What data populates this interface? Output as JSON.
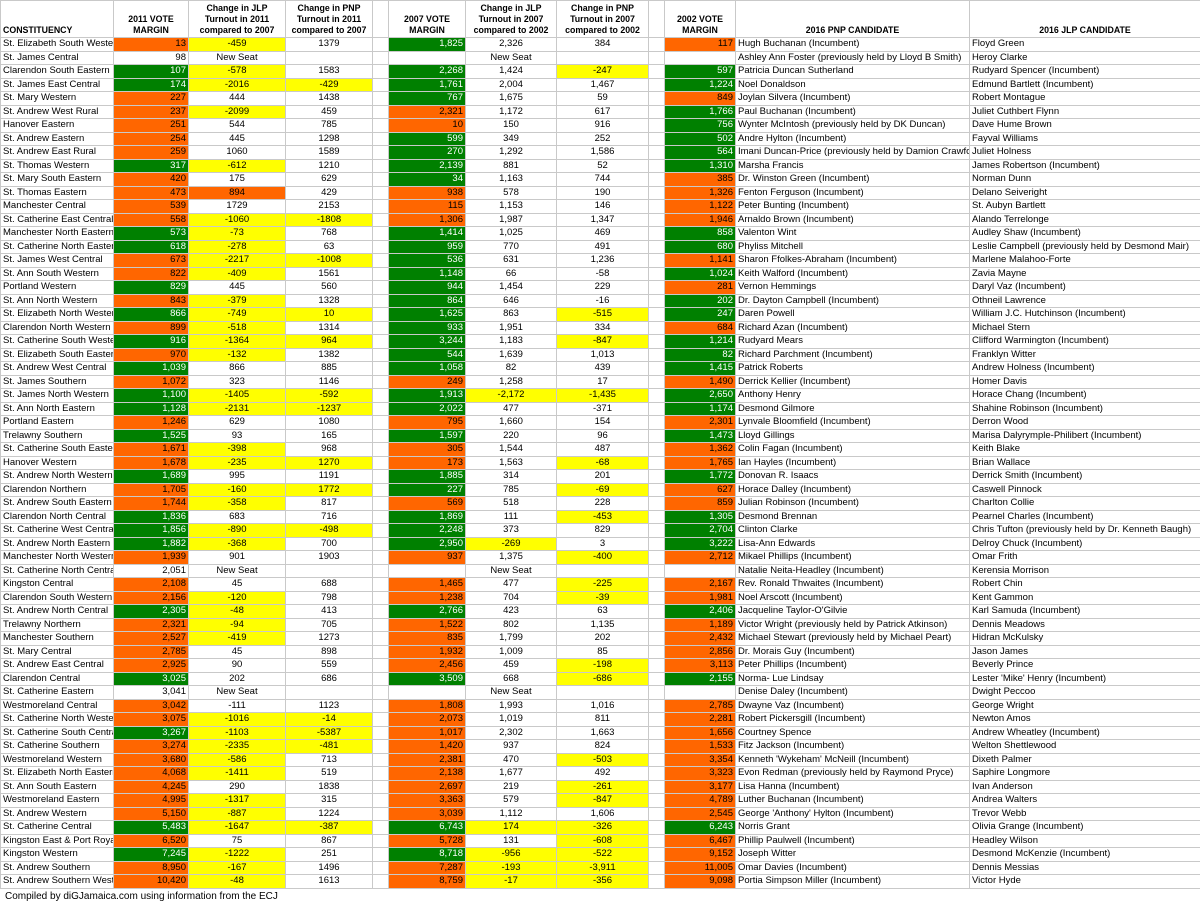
{
  "headers": [
    "CONSTITUENCY",
    "2011 VOTE MARGIN",
    "Change in JLP Turnout in 2011 compared to 2007",
    "Change in PNP Turnout in 2011 compared to 2007",
    "",
    "2007 VOTE MARGIN",
    "Change in JLP Turnout in 2007 compared to 2002",
    "Change in PNP Turnout in 2007 compared to 2002",
    "",
    "2002 VOTE MARGIN",
    "2016 PNP CANDIDATE",
    "2016 JLP CANDIDATE"
  ],
  "rows": [
    [
      "St. Elizabeth South Western",
      "13",
      "-459",
      "1379",
      "1,825",
      "2,326",
      "384",
      "117",
      "Hugh Buchanan (Incumbent)",
      "Floyd Green"
    ],
    [
      "St. James Central",
      "98",
      "New Seat",
      "",
      "",
      "New Seat",
      "",
      "",
      "Ashley Ann Foster (previously held by Lloyd B Smith)",
      "Heroy Clarke"
    ],
    [
      "Clarendon South Eastern",
      "107",
      "-578",
      "1583",
      "2,268",
      "1,424",
      "-247",
      "597",
      "Patricia Duncan Sutherland",
      "Rudyard Spencer (Incumbent)"
    ],
    [
      "St. James East Central",
      "174",
      "-2016",
      "-429",
      "1,761",
      "2,004",
      "1,467",
      "1,224",
      "Noel Donaldson",
      "Edmund Bartlett (Incumbent)"
    ],
    [
      "St. Mary Western",
      "227",
      "444",
      "1438",
      "767",
      "1,675",
      "59",
      "849",
      "Joylan Silvera (Incumbent)",
      "Robert Montague"
    ],
    [
      "St. Andrew West Rural",
      "237",
      "-2099",
      "459",
      "2,321",
      "1,172",
      "617",
      "1,766",
      "Paul Buchanan (Incumbent)",
      "Juliet Cuthbert Flynn"
    ],
    [
      "Hanover Eastern",
      "251",
      "544",
      "785",
      "10",
      "150",
      "916",
      "756",
      "Wynter McIntosh (previously held by DK Duncan)",
      "Dave Hume Brown"
    ],
    [
      "St. Andrew Eastern",
      "254",
      "445",
      "1298",
      "599",
      "349",
      "252",
      "502",
      "Andre Hylton (Incumbent)",
      "Fayval Williams"
    ],
    [
      "St. Andrew East Rural",
      "259",
      "1060",
      "1589",
      "270",
      "1,292",
      "1,586",
      "564",
      "Imani Duncan-Price (previously held by Damion Crawford)",
      "Juliet Holness"
    ],
    [
      "St. Thomas Western",
      "317",
      "-612",
      "1210",
      "2,139",
      "881",
      "52",
      "1,310",
      "Marsha Francis",
      "James Robertson (Incumbent)"
    ],
    [
      "St. Mary South Eastern",
      "420",
      "175",
      "629",
      "34",
      "1,163",
      "744",
      "385",
      "Dr. Winston Green (Incumbent)",
      "Norman Dunn"
    ],
    [
      "St. Thomas Eastern",
      "473",
      "894",
      "429",
      "938",
      "578",
      "190",
      "1,326",
      "Fenton Ferguson (Incumbent)",
      "Delano Seiveright"
    ],
    [
      "Manchester Central",
      "539",
      "1729",
      "2153",
      "115",
      "1,153",
      "146",
      "1,122",
      "Peter Bunting (Incumbent)",
      "St. Aubyn Bartlett"
    ],
    [
      "St. Catherine East Central",
      "558",
      "-1060",
      "-1808",
      "1,306",
      "1,987",
      "1,347",
      "1,946",
      "Arnaldo Brown (Incumbent)",
      "Alando Terrelonge"
    ],
    [
      "Manchester North Eastern",
      "573",
      "-73",
      "768",
      "1,414",
      "1,025",
      "469",
      "858",
      "Valenton Wint",
      "Audley Shaw (Incumbent)"
    ],
    [
      "St. Catherine North Eastern",
      "618",
      "-278",
      "63",
      "959",
      "770",
      "491",
      "680",
      "Phyliss Mitchell",
      "Leslie Campbell (previously held by Desmond Mair)"
    ],
    [
      "St. James West Central",
      "673",
      "-2217",
      "-1008",
      "536",
      "631",
      "1,236",
      "1,141",
      "Sharon Ffolkes-Abraham (Incumbent)",
      "Marlene Malahoo-Forte"
    ],
    [
      "St. Ann South Western",
      "822",
      "-409",
      "1561",
      "1,148",
      "66",
      "-58",
      "1,024",
      "Keith Walford (Incumbent)",
      "Zavia Mayne"
    ],
    [
      "Portland Western",
      "829",
      "445",
      "560",
      "944",
      "1,454",
      "229",
      "281",
      "Vernon Hemmings",
      "Daryl Vaz (Incumbent)"
    ],
    [
      "St. Ann North Western",
      "843",
      "-379",
      "1328",
      "864",
      "646",
      "-16",
      "202",
      "Dr. Dayton Campbell (Incumbent)",
      "Othneil Lawrence"
    ],
    [
      "St. Elizabeth North Western",
      "866",
      "-749",
      "10",
      "1,625",
      "863",
      "-515",
      "247",
      "Daren Powell",
      "William J.C. Hutchinson (Incumbent)"
    ],
    [
      "Clarendon North Western",
      "899",
      "-518",
      "1314",
      "933",
      "1,951",
      "334",
      "684",
      "Richard Azan (Incumbent)",
      "Michael Stern"
    ],
    [
      "St. Catherine South Western",
      "916",
      "-1364",
      "964",
      "3,244",
      "1,183",
      "-847",
      "1,214",
      "Rudyard Mears",
      "Clifford Warmington (Incumbent)"
    ],
    [
      "St. Elizabeth South Eastern",
      "970",
      "-132",
      "1382",
      "544",
      "1,639",
      "1,013",
      "82",
      "Richard Parchment (Incumbent)",
      "Franklyn Witter"
    ],
    [
      "St. Andrew West Central",
      "1,039",
      "866",
      "885",
      "1,058",
      "82",
      "439",
      "1,415",
      "Patrick Roberts",
      "Andrew Holness (Incumbent)"
    ],
    [
      "St. James Southern",
      "1,072",
      "323",
      "1146",
      "249",
      "1,258",
      "17",
      "1,490",
      "Derrick Kellier (Incumbent)",
      "Homer Davis"
    ],
    [
      "St. James North Western",
      "1,100",
      "-1405",
      "-592",
      "1,913",
      "-2,172",
      "-1,435",
      "2,650",
      "Anthony Henry",
      "Horace Chang (Incumbent)"
    ],
    [
      "St. Ann North Eastern",
      "1,128",
      "-2131",
      "-1237",
      "2,022",
      "477",
      "-371",
      "1,174",
      "Desmond Gilmore",
      "Shahine Robinson (Incumbent)"
    ],
    [
      "Portland Eastern",
      "1,246",
      "629",
      "1080",
      "795",
      "1,660",
      "154",
      "2,301",
      "Lynvale Bloomfield (Incumbent)",
      "Derron Wood"
    ],
    [
      "Trelawny Southern",
      "1,525",
      "93",
      "165",
      "1,597",
      "220",
      "96",
      "1,473",
      "Lloyd Gillings",
      "Marisa Dalyrymple-Philibert (Incumbent)"
    ],
    [
      "St. Catherine South Eastern",
      "1,671",
      "-398",
      "968",
      "305",
      "1,544",
      "487",
      "1,362",
      "Colin Fagan (Incumbent)",
      "Keith Blake"
    ],
    [
      "Hanover Western",
      "1,678",
      "-235",
      "1270",
      "173",
      "1,563",
      "-68",
      "1,765",
      "Ian Hayles (Incumbent)",
      "Brian Wallace"
    ],
    [
      "St. Andrew North Western",
      "1,689",
      "995",
      "1191",
      "1,885",
      "314",
      "201",
      "1,772",
      "Donovan R. Isaacs",
      "Derrick Smith (Incumbent)"
    ],
    [
      "Clarendon Northern",
      "1,705",
      "-160",
      "1772",
      "227",
      "785",
      "-69",
      "627",
      "Horace Dalley (Incumbent)",
      "Caswell Pinnock"
    ],
    [
      "St. Andrew South Eastern",
      "1,744",
      "-358",
      "817",
      "569",
      "518",
      "228",
      "859",
      "Julian Robinson (Incumbent)",
      "Charlton Collie"
    ],
    [
      "Clarendon North Central",
      "1,836",
      "683",
      "716",
      "1,869",
      "111",
      "-453",
      "1,305",
      "Desmond Brennan",
      "Pearnel Charles (Incumbent)"
    ],
    [
      "St. Catherine West Central",
      "1,856",
      "-890",
      "-498",
      "2,248",
      "373",
      "829",
      "2,704",
      "Clinton Clarke",
      "Chris Tufton (previously held by Dr. Kenneth Baugh)"
    ],
    [
      "St. Andrew North Eastern",
      "1,882",
      "-368",
      "700",
      "2,950",
      "-269",
      "3",
      "3,222",
      "Lisa-Ann Edwards",
      "Delroy Chuck (Incumbent)"
    ],
    [
      "Manchester North Western",
      "1,939",
      "901",
      "1903",
      "937",
      "1,375",
      "-400",
      "2,712",
      "Mikael Phillips (Incumbent)",
      "Omar Frith"
    ],
    [
      "St. Catherine North Central",
      "2,051",
      "New Seat",
      "",
      "",
      "New Seat",
      "",
      "",
      "Natalie Neita-Headley (Incumbent)",
      "Kerensia Morrison"
    ],
    [
      "Kingston Central",
      "2,108",
      "45",
      "688",
      "1,465",
      "477",
      "-225",
      "2,167",
      "Rev. Ronald Thwaites (Incumbent)",
      "Robert Chin"
    ],
    [
      "Clarendon South Western",
      "2,156",
      "-120",
      "798",
      "1,238",
      "704",
      "-39",
      "1,981",
      "Noel Arscott (Incumbent)",
      "Kent Gammon"
    ],
    [
      "St. Andrew North Central",
      "2,305",
      "-48",
      "413",
      "2,766",
      "423",
      "63",
      "2,406",
      "Jacqueline Taylor-O'Gilvie",
      "Karl Samuda (Incumbent)"
    ],
    [
      "Trelawny Northern",
      "2,321",
      "-94",
      "705",
      "1,522",
      "802",
      "1,135",
      "1,189",
      "Victor Wright (previously held by Patrick Atkinson)",
      "Dennis Meadows"
    ],
    [
      "Manchester Southern",
      "2,527",
      "-419",
      "1273",
      "835",
      "1,799",
      "202",
      "2,432",
      "Michael Stewart  (previously held by Michael Peart)",
      "Hidran McKulsky"
    ],
    [
      "St. Mary Central",
      "2,785",
      "45",
      "898",
      "1,932",
      "1,009",
      "85",
      "2,856",
      "Dr. Morais Guy (Incumbent)",
      "Jason James"
    ],
    [
      "St. Andrew East Central",
      "2,925",
      "90",
      "559",
      "2,456",
      "459",
      "-198",
      "3,113",
      "Peter Phillips (Incumbent)",
      "Beverly Prince"
    ],
    [
      "Clarendon Central",
      "3,025",
      "202",
      "686",
      "3,509",
      "668",
      "-686",
      "2,155",
      "Norma- Lue Lindsay",
      "Lester 'Mike' Henry (Incumbent)"
    ],
    [
      "St. Catherine Eastern",
      "3,041",
      "New Seat",
      "",
      "",
      "New Seat",
      "",
      "",
      "Denise Daley (Incumbent)",
      "Dwight Peccoo"
    ],
    [
      "Westmoreland Central",
      "3,042",
      "-111",
      "1123",
      "1,808",
      "1,993",
      "1,016",
      "2,785",
      "Dwayne Vaz (Incumbent)",
      "George Wright"
    ],
    [
      "St. Catherine North Western",
      "3,075",
      "-1016",
      "-14",
      "2,073",
      "1,019",
      "811",
      "2,281",
      "Robert Pickersgill (Incumbent)",
      "Newton Amos"
    ],
    [
      "St. Catherine South Central",
      "3,267",
      "-1103",
      "-5387",
      "1,017",
      "2,302",
      "1,663",
      "1,656",
      "Courtney Spence",
      "Andrew Wheatley (Incumbent)"
    ],
    [
      "St. Catherine Southern",
      "3,274",
      "-2335",
      "-481",
      "1,420",
      "937",
      "824",
      "1,533",
      "Fitz Jackson (Incumbent)",
      "Welton Shettlewood"
    ],
    [
      "Westmoreland Western",
      "3,680",
      "-586",
      "713",
      "2,381",
      "470",
      "-503",
      "3,354",
      "Kenneth 'Wykeham' McNeill (Incumbent)",
      "Dixeth Palmer"
    ],
    [
      "St. Elizabeth North Eastern",
      "4,068",
      "-1411",
      "519",
      "2,138",
      "1,677",
      "492",
      "3,323",
      "Evon Redman (previously held by Raymond Pryce)",
      "Saphire Longmore"
    ],
    [
      "St. Ann South Eastern",
      "4,245",
      "290",
      "1838",
      "2,697",
      "219",
      "-261",
      "3,177",
      "Lisa Hanna (Incumbent)",
      "Ivan Anderson"
    ],
    [
      "Westmoreland Eastern",
      "4,995",
      "-1317",
      "315",
      "3,363",
      "579",
      "-847",
      "4,789",
      "Luther Buchanan (Incumbent)",
      "Andrea Walters"
    ],
    [
      "St. Andrew Western",
      "5,150",
      "-887",
      "1224",
      "3,039",
      "1,112",
      "1,606",
      "2,545",
      "George 'Anthony' Hylton (Incumbent)",
      "Trevor Webb"
    ],
    [
      "St. Catherine Central",
      "5,483",
      "-1647",
      "-387",
      "6,743",
      "174",
      "-326",
      "6,243",
      "Norris Grant",
      "Olivia Grange (Incumbent)"
    ],
    [
      "Kingston East & Port Royal",
      "6,520",
      "75",
      "867",
      "5,728",
      "131",
      "-608",
      "6,467",
      "Phillip Paulwell (Incumbent)",
      "Headley Wilson"
    ],
    [
      "Kingston Western",
      "7,245",
      "-1222",
      "251",
      "8,718",
      "-956",
      "-522",
      "9,152",
      "Joseph Witter",
      "Desmond McKenzie (Incumbent)"
    ],
    [
      "St. Andrew Southern",
      "8,950",
      "-167",
      "1496",
      "7,287",
      "-193",
      "-3,911",
      "11,005",
      "Omar Davies (Incumbent)",
      "Dennis Messias"
    ],
    [
      "St. Andrew Southern Western",
      "10,420",
      "-48",
      "1613",
      "8,759",
      "-17",
      "-356",
      "9,098",
      "Portia Simpson Miller (Incumbent)",
      "Victor Hyde"
    ]
  ],
  "colors": [
    "oyn",
    "nnn",
    "gyn",
    "gyy",
    "onn",
    "oyn",
    "onn",
    "onn",
    "onn",
    "gyn",
    "onn",
    "oon",
    "onn",
    "oyy",
    "gyn",
    "gyn",
    "oyy",
    "oyn",
    "gnn",
    "oyn",
    "gyy",
    "oyn",
    "gyy",
    "oyn",
    "gnn",
    "onn",
    "gyy",
    "gyy",
    "onn",
    "gnn",
    "oyn",
    "oyy",
    "gnn",
    "oyy",
    "oyn",
    "gnn",
    "gyy",
    "gyn",
    "onn",
    "nnn",
    "onn",
    "oyn",
    "gyn",
    "oyn",
    "oyn",
    "onn",
    "onn",
    "gnn",
    "nnn",
    "onn",
    "oyy",
    "gyy",
    "oyy",
    "oyn",
    "oyn",
    "onn",
    "oyn",
    "oyn",
    "gyy",
    "onn",
    "gyn",
    "oyn",
    "oyn"
  ],
  "colors2": [
    "gnno",
    "nnnn",
    "gnyg",
    "gnng",
    "gnno",
    "onng",
    "onng",
    "gnng",
    "gnng",
    "gnng",
    "gnno",
    "onno",
    "onno",
    "onno",
    "gnng",
    "gnng",
    "gnno",
    "gnng",
    "gnno",
    "gnng",
    "gnyg",
    "gnno",
    "gnyg",
    "gnng",
    "gnng",
    "onno",
    "gyyg",
    "gnng",
    "onno",
    "gnng",
    "onno",
    "onyo",
    "gnng",
    "gnyo",
    "onno",
    "gnyg",
    "gnng",
    "gyng",
    "onyo",
    "nnnn",
    "onyo",
    "onyo",
    "gnng",
    "onno",
    "onno",
    "onno",
    "onyo",
    "gnyg",
    "nnnn",
    "onno",
    "onno",
    "onno",
    "onno",
    "onyo",
    "onno",
    "onyo",
    "onyo",
    "onno",
    "gyyg",
    "onyo",
    "gyyo",
    "oyyo",
    "oyyo"
  ],
  "footer": "Compiled by diGJamaica.com using information from the ECJ"
}
